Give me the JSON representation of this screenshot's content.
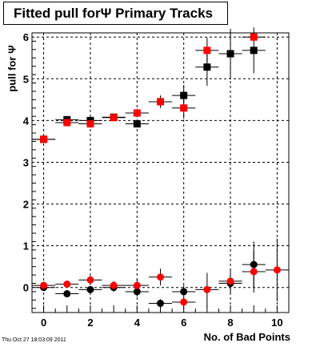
{
  "title": "Fitted pull forΨ  Primary Tracks",
  "timestamp": "Thu Oct 27 18:03:09 2011",
  "chart_data": {
    "type": "scatter",
    "xlabel": "No. of Bad Points",
    "ylabel": "pull for  Ψ",
    "xlim": [
      -0.5,
      10.5
    ],
    "ylim": [
      -0.6,
      6.1
    ],
    "xticks": [
      0,
      2,
      4,
      6,
      8,
      10
    ],
    "yticks": [
      0,
      1,
      2,
      3,
      4,
      5,
      6
    ],
    "grid": true,
    "series": [
      {
        "marker": "square",
        "color": "#000000",
        "points": [
          {
            "x": 0,
            "y": 3.55,
            "err": 0.05
          },
          {
            "x": 1,
            "y": 4.02,
            "err": 0.05
          },
          {
            "x": 2,
            "y": 4.0,
            "err": 0.05
          },
          {
            "x": 3,
            "y": 4.08,
            "err": 0.06
          },
          {
            "x": 4,
            "y": 3.92,
            "err": 0.08
          },
          {
            "x": 5,
            "y": 4.45,
            "err": 0.15
          },
          {
            "x": 6,
            "y": 4.6,
            "err": 0.25
          },
          {
            "x": 7,
            "y": 5.28,
            "err": 0.45
          },
          {
            "x": 8,
            "y": 5.6,
            "err": 0.6
          },
          {
            "x": 9,
            "y": 5.68,
            "err": 0.55
          }
        ]
      },
      {
        "marker": "square",
        "color": "#ff0000",
        "points": [
          {
            "x": 0,
            "y": 3.55,
            "err": 0.05
          },
          {
            "x": 1,
            "y": 3.95,
            "err": 0.05
          },
          {
            "x": 2,
            "y": 3.92,
            "err": 0.05
          },
          {
            "x": 3,
            "y": 4.07,
            "err": 0.06
          },
          {
            "x": 4,
            "y": 4.18,
            "err": 0.1
          },
          {
            "x": 5,
            "y": 4.45,
            "err": 0.12
          },
          {
            "x": 6,
            "y": 4.3,
            "err": 0.25
          },
          {
            "x": 7,
            "y": 5.68,
            "err": 0.3
          },
          {
            "x": 9,
            "y": 6.0,
            "err": 0.1
          }
        ]
      },
      {
        "marker": "circle",
        "color": "#000000",
        "points": [
          {
            "x": 0,
            "y": 0.0,
            "err": 0.05
          },
          {
            "x": 1,
            "y": -0.15,
            "err": 0.05
          },
          {
            "x": 2,
            "y": -0.05,
            "err": 0.08
          },
          {
            "x": 3,
            "y": 0.0,
            "err": 0.1
          },
          {
            "x": 4,
            "y": -0.1,
            "err": 0.12
          },
          {
            "x": 5,
            "y": -0.38,
            "err": 0.1
          },
          {
            "x": 6,
            "y": -0.1,
            "err": 0.15
          },
          {
            "x": 8,
            "y": 0.1,
            "err": 0.2
          },
          {
            "x": 9,
            "y": 0.55,
            "err": 0.55
          }
        ]
      },
      {
        "marker": "circle",
        "color": "#ff0000",
        "points": [
          {
            "x": 0,
            "y": 0.05,
            "err": 0.05
          },
          {
            "x": 1,
            "y": 0.08,
            "err": 0.05
          },
          {
            "x": 2,
            "y": 0.18,
            "err": 0.1
          },
          {
            "x": 3,
            "y": 0.05,
            "err": 0.1
          },
          {
            "x": 4,
            "y": 0.05,
            "err": 0.15
          },
          {
            "x": 5,
            "y": 0.25,
            "err": 0.2
          },
          {
            "x": 6,
            "y": -0.35,
            "err": 0.1
          },
          {
            "x": 7,
            "y": -0.05,
            "err": 0.4
          },
          {
            "x": 8,
            "y": 0.15,
            "err": 0.3
          },
          {
            "x": 9,
            "y": 0.38,
            "err": 0.5
          },
          {
            "x": 10,
            "y": 0.42,
            "err": 0.75
          }
        ]
      }
    ]
  }
}
